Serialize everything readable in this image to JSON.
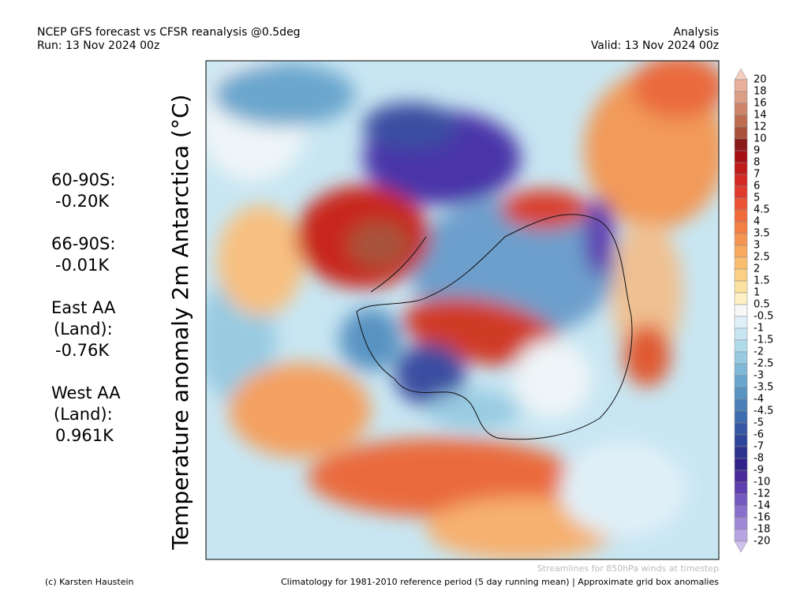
{
  "header": {
    "title": "NCEP GFS forecast vs CFSR reanalysis @0.5deg",
    "run": "Run: 13 Nov 2024 00z",
    "kind": "Analysis",
    "valid": "Valid: 13 Nov 2024 00z"
  },
  "side_label": "Temperature anomaly 2m Antarctica (°C)",
  "stats": [
    {
      "lines": [
        "60-90S:"
      ],
      "value": "-0.20K"
    },
    {
      "lines": [
        "66-90S:"
      ],
      "value": "-0.01K"
    },
    {
      "lines": [
        "East AA",
        "(Land):"
      ],
      "value": "-0.76K"
    },
    {
      "lines": [
        "West AA",
        "(Land):"
      ],
      "value": "0.961K"
    }
  ],
  "colorbar": {
    "labels": [
      20,
      18,
      16,
      14,
      12,
      10,
      9,
      8,
      7,
      6,
      5,
      4.5,
      4,
      3.5,
      3,
      2.5,
      2,
      1.5,
      1,
      0.5,
      -0.5,
      -1,
      -1.5,
      -2,
      -2.5,
      -3,
      -3.5,
      -4,
      -4.5,
      -5,
      -6,
      -7,
      -8,
      -9,
      -10,
      -12,
      -14,
      -16,
      -18,
      -20
    ],
    "colors": [
      "#f4cdbf",
      "#e8b09a",
      "#dc9d85",
      "#cd8468",
      "#bd6c50",
      "#a8533a",
      "#8b1a1a",
      "#a50f15",
      "#c01b1b",
      "#d42a26",
      "#e03a2e",
      "#ea5435",
      "#f06a3a",
      "#f47f45",
      "#f69552",
      "#f8aa5f",
      "#fabd70",
      "#fbd085",
      "#fce2a0",
      "#fdf0c4",
      "#f7f7f7",
      "#e0f0f8",
      "#c8e6f2",
      "#b0dbeb",
      "#98cbe2",
      "#80b9d8",
      "#6aa6cd",
      "#5893c2",
      "#4a80b8",
      "#3f6cae",
      "#3658a4",
      "#2e4599",
      "#2b338c",
      "#32238a",
      "#4a2a9a",
      "#5f3fb0",
      "#7558c0",
      "#8a70cc",
      "#a08ad8",
      "#b8a4e2",
      "#d0c2ee"
    ]
  },
  "footer": {
    "note": "Streamlines for 850hPa winds at timestep",
    "credit": "(c) Karsten Haustein",
    "climatology": "Climatology for 1981-2010 reference period (5 day running mean) | Approximate grid box anomalies"
  }
}
